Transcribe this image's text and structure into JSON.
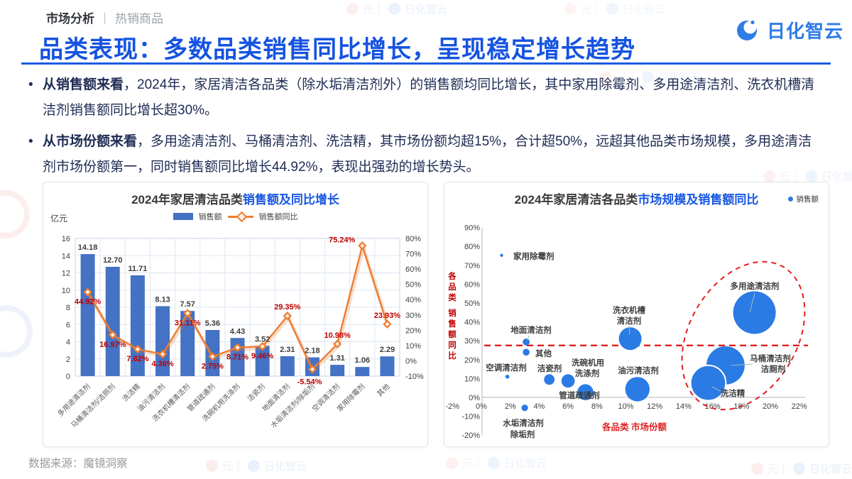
{
  "page": {
    "crumb_left": "市场分析",
    "crumb_divider": "丨",
    "crumb_right": "热销商品",
    "title": "品类表现：多数品类销售同比增长，呈现稳定增长趋势",
    "logo_text": "日化智云",
    "source": "数据来源：魔镜洞察",
    "watermark_prefix": "元丨",
    "watermark_brand": "日化智云"
  },
  "bullets": [
    {
      "bold": "从销售额来看",
      "rest": "，2024年，家居清洁各品类（除水垢清洁剂外）的销售额均同比增长，其中家用除霉剂、多用途清洁剂、洗衣机槽清洁剂销售额同比增长超30%。"
    },
    {
      "bold": "从市场份额来看",
      "rest": "，多用途清洁剂、马桶清洁剂、洗洁精，其市场份额均超15%，合计超50%，远超其他品类市场规模，多用途清洁剂市场份额第一，同时销售额同比增长44.92%，表现出强劲的增长势头。"
    }
  ],
  "colors": {
    "accent_blue": "#1757e2",
    "bar_blue": "#4472c4",
    "line_orange": "#ed7d31",
    "label_red": "#c00000",
    "dash_red": "#e02020",
    "bubble_blue": "#2b7be4",
    "grid": "#dde7f3",
    "plot_border": "#c7d3e6",
    "axis_gray": "#aeb5bd"
  },
  "chart_data": [
    {
      "type": "bar+line",
      "title_black": "2024年家居清洁品类",
      "title_blue": "销售额及同比增长",
      "unit": "亿元",
      "legend": [
        {
          "label": "销售额"
        },
        {
          "label": "销售额同比"
        }
      ],
      "categories": [
        "多用途清洁剂",
        "马桶清洁剂/洁厕剂",
        "洗洁精",
        "油污清洁剂",
        "洗衣机槽清洁剂",
        "管道疏通剂",
        "洗碗机用洗涤剂",
        "洁瓷剂",
        "地面清洁剂",
        "水垢清洁剂/除垢剂",
        "空调清洁剂",
        "家用除霉剂",
        "其他"
      ],
      "sales_labels": [
        "14.18",
        "12.70",
        "11.71",
        "8.13",
        "7.57",
        "5.36",
        "4.43",
        "3.52",
        "2.31",
        "2.18",
        "1.31",
        "1.06",
        "2.29"
      ],
      "yoy_labels": [
        "44.92%",
        "16.97%",
        "7.62%",
        "4.36%",
        "31.11%",
        "2.75%",
        "8.71%",
        "9.46%",
        "29.35%",
        "-5.54%",
        "10.98%",
        "75.24%",
        "23.93%"
      ],
      "ylim_left": [
        0,
        16,
        2
      ],
      "ylim_right": [
        -10,
        80,
        10
      ],
      "yoy_label_pos": [
        "b",
        "b",
        "b",
        "b",
        "b",
        "b",
        "b",
        "b",
        "a",
        "b2",
        "a",
        "l",
        "a"
      ]
    },
    {
      "type": "bubble",
      "title_black": "2024年家居清洁各品类",
      "title_blue": "市场规模及销售额同比",
      "legend": "销售额",
      "xlabel": "各品类 市场份额",
      "ylabel": "各品类 销售额同比",
      "xlim": [
        -2,
        22,
        2
      ],
      "ylim": [
        -20,
        90,
        10
      ],
      "avg_line_y": 27.5,
      "highlight_ellipse": {
        "cx": 421,
        "cy": 216,
        "rx": 76,
        "ry": 112,
        "rotate": 30
      },
      "bubbles": [
        {
          "name": "多用途清洁剂",
          "share": 18.9,
          "yoy": 44.92,
          "sales": 14.18,
          "label": {
            "anchor": "middle",
            "lines": [
              {
                "t": "多用途清洁剂",
                "x": 437,
                "y": 150
              }
            ]
          },
          "leader": [
            437,
            156,
            430,
            183
          ]
        },
        {
          "name": "马桶清洁剂/洁厕剂",
          "share": 16.9,
          "yoy": 16.97,
          "sales": 12.7,
          "label": {
            "anchor": "middle",
            "lines": [
              {
                "t": "马桶清洁剂",
                "x": 459,
                "y": 252
              },
              {
                "t": "洁厕剂",
                "x": 463,
                "y": 267
              }
            ]
          },
          "leader": [
            434,
            256,
            404,
            258
          ]
        },
        {
          "name": "洗洁精",
          "share": 15.7,
          "yoy": 7.62,
          "sales": 11.71,
          "white_stroke": true,
          "label": {
            "anchor": "middle",
            "lines": [
              {
                "t": "洗洁精",
                "x": 406,
                "y": 301
              }
            ]
          },
          "leader": [
            392,
            296,
            377,
            288
          ]
        },
        {
          "name": "油污清洁剂",
          "share": 10.8,
          "yoy": 4.36,
          "sales": 8.13,
          "label": {
            "anchor": "middle",
            "lines": [
              {
                "t": "油污清洁剂",
                "x": 273,
                "y": 269
              }
            ]
          }
        },
        {
          "name": "洗衣机槽清洁剂",
          "share": 10.3,
          "yoy": 31.11,
          "sales": 7.57,
          "label": {
            "anchor": "middle",
            "lines": [
              {
                "t": "洗衣机槽",
                "x": 260,
                "y": 184
              },
              {
                "t": "清洁剂",
                "x": 260,
                "y": 199
              }
            ]
          },
          "leader": [
            260,
            203,
            261,
            214
          ]
        },
        {
          "name": "管道疏通剂",
          "share": 7.2,
          "yoy": 2.75,
          "sales": 5.36,
          "label": {
            "anchor": "middle",
            "lines": [
              {
                "t": "管道疏通剂",
                "x": 190,
                "y": 304
              }
            ]
          }
        },
        {
          "name": "洗碗机用洗涤剂",
          "share": 6.0,
          "yoy": 8.71,
          "sales": 4.43,
          "label": {
            "anchor": "middle",
            "lines": [
              {
                "t": "洗碗机用",
                "x": 202,
                "y": 258
              },
              {
                "t": "洗涤剂",
                "x": 201,
                "y": 273
              }
            ]
          }
        },
        {
          "name": "洁瓷剂",
          "share": 4.7,
          "yoy": 9.46,
          "sales": 3.52,
          "label": {
            "anchor": "middle",
            "lines": [
              {
                "t": "洁瓷剂",
                "x": 148,
                "y": 266
              }
            ]
          }
        },
        {
          "name": "地面清洁剂",
          "share": 3.1,
          "yoy": 29.35,
          "sales": 2.31,
          "label": {
            "anchor": "middle",
            "lines": [
              {
                "t": "地面清洁剂",
                "x": 122,
                "y": 212
              }
            ]
          },
          "leader": [
            120,
            216,
            116,
            222
          ]
        },
        {
          "name": "水垢清洁剂/除垢剂",
          "share": 3.0,
          "yoy": -5.54,
          "sales": 2.18,
          "label": {
            "anchor": "middle",
            "lines": [
              {
                "t": "水垢清洁剂",
                "x": 111,
                "y": 343
              },
              {
                "t": "除垢剂",
                "x": 110,
                "y": 359
              }
            ]
          }
        },
        {
          "name": "空调清洁剂",
          "share": 1.8,
          "yoy": 10.98,
          "sales": 1.31,
          "label": {
            "anchor": "middle",
            "lines": [
              {
                "t": "空调清洁剂",
                "x": 87,
                "y": 265
              }
            ]
          }
        },
        {
          "name": "家用除霉剂",
          "share": 1.4,
          "yoy": 75.24,
          "sales": 1.06,
          "label": {
            "anchor": "start",
            "lines": [
              {
                "t": "家用除霉剂",
                "x": 97,
                "y": 108
              }
            ]
          }
        },
        {
          "name": "其他",
          "share": 3.1,
          "yoy": 23.93,
          "sales": 2.29,
          "label": {
            "anchor": "start",
            "lines": [
              {
                "t": "其他",
                "x": 128,
                "y": 245
              }
            ]
          }
        }
      ]
    }
  ]
}
